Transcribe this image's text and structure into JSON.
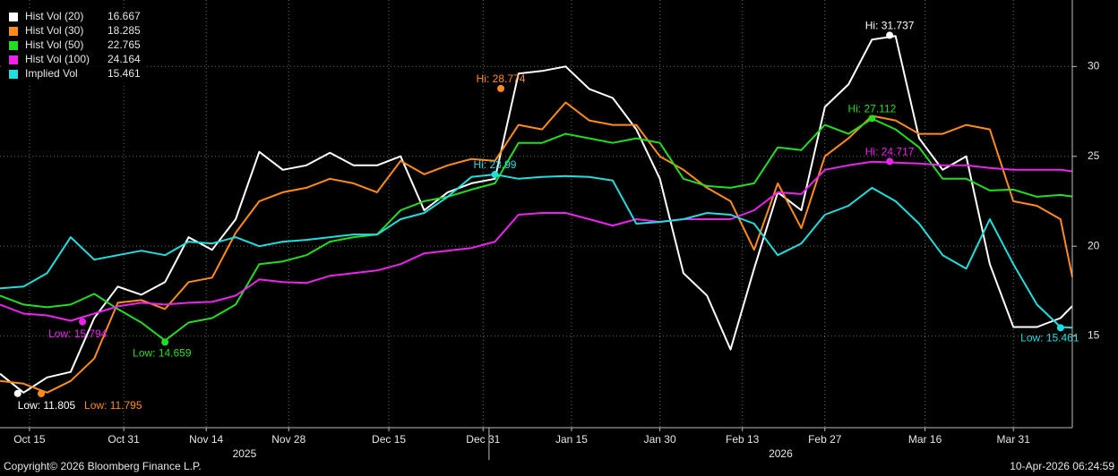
{
  "chart_data": {
    "type": "line",
    "x": [
      "2025-10-10",
      "2025-10-14",
      "2025-10-18",
      "2025-10-22",
      "2025-10-26",
      "2025-10-30",
      "2025-11-03",
      "2025-11-07",
      "2025-11-11",
      "2025-11-15",
      "2025-11-19",
      "2025-11-23",
      "2025-11-27",
      "2025-12-01",
      "2025-12-05",
      "2025-12-09",
      "2025-12-13",
      "2025-12-17",
      "2025-12-21",
      "2025-12-25",
      "2025-12-29",
      "2026-01-02",
      "2026-01-06",
      "2026-01-10",
      "2026-01-14",
      "2026-01-18",
      "2026-01-22",
      "2026-01-26",
      "2026-01-30",
      "2026-02-03",
      "2026-02-07",
      "2026-02-11",
      "2026-02-15",
      "2026-02-19",
      "2026-02-23",
      "2026-02-27",
      "2026-03-03",
      "2026-03-07",
      "2026-03-11",
      "2026-03-15",
      "2026-03-19",
      "2026-03-23",
      "2026-03-27",
      "2026-03-31",
      "2026-04-04",
      "2026-04-08",
      "2026-04-10"
    ],
    "series": [
      {
        "name": "Hist Vol (20)",
        "last": 16.667,
        "color": "#ffffff",
        "values": [
          12.9,
          11.85,
          12.7,
          13.0,
          16.0,
          17.75,
          17.3,
          18.0,
          20.5,
          19.8,
          21.5,
          25.25,
          24.25,
          24.5,
          25.2,
          24.5,
          24.5,
          25.0,
          22.0,
          23.0,
          23.5,
          23.75,
          29.6,
          29.75,
          30.0,
          28.75,
          28.25,
          26.5,
          23.75,
          18.5,
          17.25,
          14.25,
          18.75,
          23.0,
          22.0,
          27.75,
          29.0,
          31.5,
          31.7,
          26.0,
          24.25,
          25.0,
          19.0,
          15.5,
          15.5,
          16.0,
          16.667
        ],
        "markers": [
          {
            "label": "Low: 11.805",
            "x": "2025-10-13",
            "value": 11.805
          },
          {
            "label": "Hi: 31.737",
            "x": "2026-03-10",
            "value": 31.737
          }
        ]
      },
      {
        "name": "Hist Vol (30)",
        "last": 18.285,
        "color": "#ff8c1a",
        "values": [
          12.5,
          12.35,
          11.85,
          12.5,
          13.75,
          16.85,
          17.0,
          16.5,
          18.0,
          18.25,
          20.75,
          22.5,
          23.0,
          23.25,
          23.75,
          23.5,
          23.0,
          24.75,
          24.0,
          24.5,
          24.85,
          24.75,
          26.75,
          26.5,
          28.0,
          27.0,
          26.75,
          26.75,
          25.0,
          24.25,
          23.25,
          22.5,
          19.8,
          23.5,
          21.0,
          25.0,
          26.0,
          27.25,
          27.0,
          26.25,
          26.25,
          26.75,
          26.5,
          22.5,
          22.25,
          21.5,
          18.285
        ],
        "markers": [
          {
            "label": "Low: 11.795",
            "x": "2025-10-17",
            "value": 11.795
          },
          {
            "label": "Hi: 28.774",
            "x": "2026-01-03",
            "value": 28.774
          }
        ]
      },
      {
        "name": "Hist Vol (50)",
        "last": 22.765,
        "color": "#22dd22",
        "values": [
          17.25,
          16.75,
          16.6,
          16.75,
          17.35,
          16.5,
          15.75,
          14.75,
          15.75,
          16.0,
          16.75,
          19.0,
          19.15,
          19.5,
          20.25,
          20.5,
          20.65,
          22.0,
          22.5,
          22.75,
          23.15,
          23.5,
          25.75,
          25.75,
          26.25,
          26.0,
          25.75,
          26.0,
          25.75,
          23.75,
          23.35,
          23.25,
          23.5,
          25.5,
          25.35,
          26.75,
          26.25,
          27.1,
          26.5,
          25.5,
          23.75,
          23.75,
          23.1,
          23.15,
          22.75,
          22.85,
          22.765
        ],
        "markers": [
          {
            "label": "Low: 14.659",
            "x": "2025-11-07",
            "value": 14.659
          },
          {
            "label": "Hi: 27.112",
            "x": "2026-03-07",
            "value": 27.112
          }
        ]
      },
      {
        "name": "Hist Vol (100)",
        "last": 24.164,
        "color": "#ee22ee",
        "values": [
          16.75,
          16.25,
          16.15,
          15.85,
          16.25,
          16.65,
          16.85,
          16.75,
          16.85,
          16.9,
          17.25,
          18.15,
          18.0,
          17.95,
          18.35,
          18.5,
          18.65,
          19.0,
          19.6,
          19.75,
          19.9,
          20.25,
          21.75,
          21.85,
          21.85,
          21.5,
          21.15,
          21.5,
          21.35,
          21.5,
          21.5,
          21.5,
          22.0,
          23.0,
          22.9,
          24.25,
          24.5,
          24.7,
          24.65,
          24.6,
          24.5,
          24.5,
          24.35,
          24.25,
          24.25,
          24.25,
          24.164
        ],
        "markers": [
          {
            "label": "Low: 15.794",
            "x": "2025-10-24",
            "value": 15.794
          },
          {
            "label": "Hi: 24.717",
            "x": "2026-03-10",
            "value": 24.717
          }
        ]
      },
      {
        "name": "Implied Vol",
        "last": 15.461,
        "color": "#22dddd",
        "values": [
          17.65,
          17.75,
          18.5,
          20.5,
          19.25,
          19.5,
          19.75,
          19.5,
          20.25,
          20.15,
          20.5,
          20.0,
          20.25,
          20.35,
          20.5,
          20.65,
          20.65,
          21.5,
          21.85,
          22.75,
          23.85,
          23.99,
          23.75,
          23.85,
          23.9,
          23.85,
          23.65,
          21.25,
          21.35,
          21.5,
          21.85,
          21.75,
          21.25,
          19.5,
          20.15,
          21.75,
          22.25,
          23.25,
          22.5,
          21.25,
          19.5,
          18.75,
          21.5,
          19.0,
          16.75,
          15.5,
          15.461
        ],
        "markers": [
          {
            "label": "Hi: 23.99",
            "x": "2026-01-02",
            "value": 23.99
          },
          {
            "label": "Low: 15.461",
            "x": "2026-04-08",
            "value": 15.461
          }
        ]
      }
    ],
    "xlim": [
      "2025-10-10",
      "2026-04-10"
    ],
    "xticks": [
      {
        "value": "2025-10-15",
        "label": "Oct 15"
      },
      {
        "value": "2025-10-31",
        "label": "Oct 31"
      },
      {
        "value": "2025-11-14",
        "label": "Nov 14"
      },
      {
        "value": "2025-11-28",
        "label": "Nov 28"
      },
      {
        "value": "2025-12-15",
        "label": "Dec 15"
      },
      {
        "value": "2025-12-31",
        "label": "Dec 31"
      },
      {
        "value": "2026-01-15",
        "label": "Jan 15"
      },
      {
        "value": "2026-01-30",
        "label": "Jan 30"
      },
      {
        "value": "2026-02-13",
        "label": "Feb 13"
      },
      {
        "value": "2026-02-27",
        "label": "Feb 27"
      },
      {
        "value": "2026-03-16",
        "label": "Mar 16"
      },
      {
        "value": "2026-03-31",
        "label": "Mar 31"
      }
    ],
    "years": [
      {
        "value": "2025-01-01",
        "label": "2025"
      },
      {
        "value": "2026-01-01",
        "label": "2026"
      }
    ],
    "ylim": [
      9.9,
      33.7
    ],
    "yticks": [
      15,
      20,
      25,
      30
    ],
    "grid": true,
    "legend": "top-left",
    "copyright": "Copyright© 2026 Bloomberg Finance L.P.",
    "timestamp": "10-Apr-2026 06:24:59"
  }
}
